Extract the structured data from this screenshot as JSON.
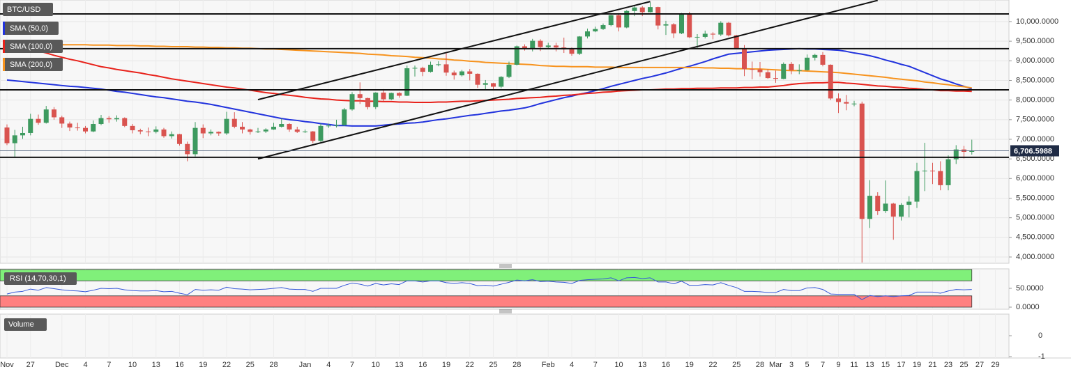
{
  "chart_data": {
    "type": "candlestick",
    "title": "BTC/USD",
    "categories": [
      "Nov",
      null,
      null,
      "27",
      null,
      null,
      null,
      "Dec",
      null,
      null,
      "4",
      null,
      null,
      "7",
      null,
      null,
      "10",
      null,
      null,
      "13",
      null,
      null,
      "16",
      null,
      null,
      "19",
      null,
      null,
      "22",
      null,
      null,
      "25",
      null,
      null,
      "28",
      null,
      null,
      null,
      "Jan",
      null,
      null,
      "4",
      null,
      null,
      "7",
      null,
      null,
      "10",
      null,
      null,
      "13",
      null,
      null,
      "16",
      null,
      null,
      "19",
      null,
      null,
      "22",
      null,
      null,
      "25",
      null,
      null,
      "28",
      null,
      null,
      null,
      "Feb",
      null,
      null,
      "4",
      null,
      null,
      "7",
      null,
      null,
      "10",
      null,
      null,
      "13",
      null,
      null,
      "16",
      null,
      null,
      "19",
      null,
      null,
      "22",
      null,
      null,
      "25",
      null,
      null,
      "28",
      null,
      "Mar",
      null,
      "3",
      null,
      "5",
      null,
      "7",
      null,
      "9",
      null,
      "11",
      null,
      "13",
      null,
      "15",
      null,
      "17",
      null,
      "19",
      null,
      "21",
      null,
      "23",
      null,
      "25",
      null,
      "27",
      null,
      "29"
    ],
    "open": [
      7300,
      6900,
      7100,
      7160,
      7520,
      7420,
      7760,
      7560,
      7400,
      7300,
      7290,
      7200,
      7390,
      7540,
      7510,
      7540,
      7340,
      7230,
      7200,
      7190,
      7250,
      7080,
      7130,
      6880,
      6620,
      7290,
      7150,
      7190,
      7150,
      7520,
      7320,
      7250,
      7190,
      7200,
      7250,
      7320,
      7390,
      7250,
      7190,
      7200,
      6960,
      7340,
      7350,
      7360,
      7760,
      8150,
      8050,
      7820,
      8190,
      8020,
      8180,
      8110,
      8810,
      8820,
      8720,
      8900,
      8910,
      8700,
      8630,
      8730,
      8670,
      8390,
      8430,
      8340,
      8590,
      8900,
      9370,
      9300,
      9510,
      9350,
      9390,
      9340,
      9290,
      9180,
      9620,
      9750,
      9810,
      9910,
      10160,
      9850,
      10270,
      10360,
      10240,
      10370,
      9900,
      9930,
      9700,
      10180,
      9600,
      9610,
      9690,
      9670,
      9970,
      9650,
      9320,
      8790,
      8780,
      8710,
      8560,
      8540,
      8920,
      8760,
      8760,
      9080,
      9150,
      8900,
      8040,
      7950,
      7910,
      7910,
      4970,
      5560,
      5170,
      5360,
      5030,
      5330,
      5410,
      6190,
      6200,
      6190,
      5830,
      6490,
      6740,
      6680,
      null,
      null,
      null
    ],
    "high": [
      7380,
      7240,
      7320,
      7650,
      7630,
      7850,
      7820,
      7600,
      7450,
      7420,
      7340,
      7480,
      7620,
      7590,
      7610,
      7560,
      7390,
      7270,
      7300,
      7330,
      7290,
      7200,
      7140,
      6940,
      7440,
      7380,
      7250,
      7200,
      7700,
      7690,
      7440,
      7270,
      7290,
      7280,
      7420,
      7530,
      7410,
      7320,
      7250,
      7210,
      7400,
      7400,
      7500,
      7800,
      8200,
      8450,
      8060,
      8200,
      8280,
      8190,
      8200,
      8880,
      8880,
      8850,
      8980,
      8990,
      9190,
      8750,
      8770,
      8790,
      8680,
      8510,
      8440,
      8610,
      8980,
      9390,
      9420,
      9560,
      9550,
      9460,
      9460,
      9590,
      9340,
      9630,
      9820,
      9870,
      9950,
      10170,
      10200,
      10290,
      10420,
      10390,
      10490,
      10380,
      10020,
      9960,
      10220,
      10250,
      9680,
      9770,
      9730,
      10010,
      9990,
      9660,
      9400,
      8980,
      8970,
      8790,
      8750,
      8960,
      8970,
      8910,
      9160,
      9180,
      9220,
      8910,
      8170,
      8130,
      7980,
      7960,
      5960,
      5650,
      5950,
      5380,
      5370,
      5550,
      6400,
      6910,
      6400,
      6440,
      6590,
      6850,
      6830,
      6990,
      null,
      null,
      null
    ],
    "low": [
      6850,
      6540,
      7010,
      7100,
      7370,
      7400,
      7500,
      7290,
      7210,
      7220,
      7150,
      7180,
      7360,
      7420,
      7450,
      7310,
      7150,
      7130,
      7080,
      7150,
      7040,
      7020,
      6840,
      6440,
      6560,
      7030,
      7100,
      7090,
      7110,
      7280,
      7150,
      7120,
      7160,
      7160,
      7240,
      7300,
      7190,
      7160,
      7160,
      6900,
      6930,
      7290,
      7300,
      7340,
      7730,
      7900,
      7760,
      7770,
      7970,
      8000,
      8060,
      8100,
      8600,
      8610,
      8700,
      8860,
      8620,
      8520,
      8600,
      8500,
      8310,
      8260,
      8280,
      8300,
      8560,
      8880,
      9260,
      9240,
      9250,
      9300,
      9240,
      9200,
      9130,
      9150,
      9570,
      9730,
      9790,
      9880,
      9750,
      9830,
      10140,
      10140,
      10230,
      9800,
      9660,
      9580,
      9680,
      9580,
      9300,
      9570,
      9550,
      9630,
      9620,
      9300,
      8610,
      8530,
      8600,
      8540,
      8440,
      8530,
      8660,
      8660,
      8750,
      9010,
      8860,
      8000,
      7670,
      7740,
      7840,
      3860,
      4740,
      5070,
      5120,
      4440,
      4930,
      5010,
      5250,
      5680,
      5860,
      5700,
      5700,
      6370,
      6510,
      6610,
      null,
      null,
      null
    ],
    "close": [
      6900,
      7100,
      7160,
      7520,
      7420,
      7760,
      7560,
      7400,
      7300,
      7290,
      7200,
      7390,
      7540,
      7510,
      7540,
      7340,
      7230,
      7200,
      7190,
      7250,
      7080,
      7130,
      6880,
      6620,
      7290,
      7150,
      7190,
      7150,
      7520,
      7320,
      7250,
      7190,
      7200,
      7250,
      7320,
      7390,
      7250,
      7190,
      7200,
      6960,
      7340,
      7350,
      7360,
      7760,
      8150,
      8050,
      7820,
      8190,
      8020,
      8180,
      8110,
      8810,
      8820,
      8720,
      8900,
      8910,
      8700,
      8630,
      8730,
      8670,
      8390,
      8430,
      8340,
      8590,
      8900,
      9370,
      9300,
      9510,
      9350,
      9390,
      9340,
      9290,
      9180,
      9620,
      9750,
      9810,
      9910,
      10160,
      9850,
      10270,
      10360,
      10240,
      10370,
      9900,
      9930,
      9700,
      10180,
      9600,
      9610,
      9690,
      9670,
      9970,
      9650,
      9320,
      8790,
      8780,
      8710,
      8560,
      8540,
      8920,
      8760,
      8760,
      9080,
      9150,
      8900,
      8040,
      7950,
      7910,
      7910,
      4970,
      5560,
      5170,
      5360,
      5030,
      5330,
      5410,
      6190,
      6200,
      6190,
      5830,
      6490,
      6740,
      6680,
      6706.5988,
      null,
      null,
      null
    ],
    "up_color": "#3d9a5f",
    "down_color": "#d9534f",
    "ylim": [
      3840,
      10550
    ],
    "yticks": [
      {
        "value": 4000,
        "label": "4,000.0000"
      },
      {
        "value": 4500,
        "label": "4,500.0000"
      },
      {
        "value": 5000,
        "label": "5,000.0000"
      },
      {
        "value": 5500,
        "label": "5,500.0000"
      },
      {
        "value": 6000,
        "label": "6,000.0000"
      },
      {
        "value": 6500,
        "label": "6,500.0000"
      },
      {
        "value": 7000,
        "label": "7,000.0000"
      },
      {
        "value": 7500,
        "label": "7,500.0000"
      },
      {
        "value": 8000,
        "label": "8,000.0000"
      },
      {
        "value": 8500,
        "label": "8,500.0000"
      },
      {
        "value": 9000,
        "label": "9,000.0000"
      },
      {
        "value": 9500,
        "label": "9,500.0000"
      },
      {
        "value": 10000,
        "label": "10,000.0000"
      }
    ],
    "grid": true,
    "last_value": {
      "value": 6706.5988,
      "label": "6,706.5988"
    },
    "horizontal_lines": [
      10195,
      9310,
      8260,
      6540
    ],
    "trend_lines": [
      [
        [
          32,
          8010
        ],
        [
          82,
          10510
        ]
      ],
      [
        [
          32,
          6500
        ],
        [
          111,
          10540
        ]
      ]
    ],
    "series": [
      {
        "name": "SMA (50,0)",
        "color": "#2233dd",
        "values": [
          8510,
          8490,
          8470,
          8450,
          8430,
          8410,
          8390,
          8370,
          8350,
          8340,
          8320,
          8300,
          8280,
          8250,
          8220,
          8200,
          8170,
          8140,
          8110,
          8080,
          8060,
          8030,
          8000,
          7970,
          7950,
          7920,
          7890,
          7850,
          7810,
          7770,
          7730,
          7690,
          7650,
          7610,
          7570,
          7530,
          7500,
          7480,
          7450,
          7430,
          7400,
          7380,
          7350,
          7350,
          7340,
          7340,
          7340,
          7340,
          7360,
          7380,
          7390,
          7410,
          7420,
          7440,
          7470,
          7500,
          7520,
          7550,
          7580,
          7610,
          7630,
          7660,
          7690,
          7720,
          7740,
          7770,
          7800,
          7850,
          7910,
          7960,
          8010,
          8060,
          8100,
          8150,
          8190,
          8240,
          8290,
          8350,
          8400,
          8450,
          8500,
          8550,
          8590,
          8640,
          8690,
          8750,
          8810,
          8860,
          8920,
          8980,
          9050,
          9110,
          9170,
          9190,
          9210,
          9230,
          9250,
          9270,
          9280,
          9290,
          9300,
          9310,
          9300,
          9300,
          9290,
          9280,
          9270,
          9240,
          9200,
          9170,
          9130,
          9080,
          9020,
          8970,
          8910,
          8860,
          8780,
          8700,
          8620,
          8540,
          8480,
          8410,
          8350,
          8280,
          null,
          null,
          null
        ]
      },
      {
        "name": "SMA (100,0)",
        "color": "#e8221b",
        "values": [
          9390,
          9360,
          9330,
          9300,
          9250,
          9200,
          9140,
          9090,
          9040,
          9000,
          8950,
          8900,
          8850,
          8820,
          8780,
          8750,
          8720,
          8690,
          8650,
          8620,
          8580,
          8540,
          8510,
          8480,
          8450,
          8420,
          8390,
          8360,
          8330,
          8310,
          8280,
          8250,
          8220,
          8190,
          8170,
          8140,
          8120,
          8100,
          8070,
          8050,
          8030,
          8020,
          8000,
          7990,
          7980,
          7980,
          7970,
          7970,
          7960,
          7960,
          7950,
          7950,
          7940,
          7940,
          7940,
          7950,
          7950,
          7960,
          7970,
          7970,
          7980,
          7990,
          8000,
          8010,
          8020,
          8040,
          8050,
          8060,
          8070,
          8090,
          8100,
          8120,
          8130,
          8150,
          8170,
          8180,
          8200,
          8210,
          8230,
          8240,
          8250,
          8260,
          8260,
          8270,
          8280,
          8280,
          8290,
          8290,
          8300,
          8300,
          8300,
          8310,
          8310,
          8310,
          8320,
          8320,
          8330,
          8330,
          8350,
          8370,
          8400,
          8420,
          8430,
          8440,
          8440,
          8450,
          8450,
          8430,
          8420,
          8400,
          8380,
          8360,
          8350,
          8330,
          8320,
          8300,
          8290,
          8270,
          8260,
          8240,
          8240,
          8230,
          8230,
          8220,
          null,
          null,
          null
        ]
      },
      {
        "name": "SMA (200,0)",
        "color": "#f7931e",
        "values": [
          9430,
          9430,
          9430,
          9420,
          9420,
          9420,
          9420,
          9410,
          9410,
          9410,
          9410,
          9400,
          9400,
          9400,
          9390,
          9390,
          9390,
          9380,
          9380,
          9370,
          9370,
          9360,
          9360,
          9360,
          9350,
          9350,
          9340,
          9340,
          9330,
          9330,
          9320,
          9320,
          9310,
          9300,
          9300,
          9290,
          9280,
          9270,
          9260,
          9250,
          9240,
          9230,
          9220,
          9210,
          9200,
          9190,
          9170,
          9160,
          9150,
          9130,
          9120,
          9110,
          9090,
          9080,
          9070,
          9050,
          9040,
          9020,
          9010,
          8990,
          8980,
          8960,
          8950,
          8940,
          8930,
          8920,
          8910,
          8900,
          8880,
          8870,
          8860,
          8860,
          8850,
          8850,
          8850,
          8840,
          8840,
          8840,
          8830,
          8830,
          8830,
          8830,
          8830,
          8830,
          8830,
          8830,
          8830,
          8830,
          8830,
          8820,
          8820,
          8810,
          8810,
          8800,
          8800,
          8790,
          8790,
          8780,
          8770,
          8760,
          8750,
          8750,
          8740,
          8730,
          8720,
          8710,
          8700,
          8680,
          8660,
          8640,
          8620,
          8600,
          8580,
          8550,
          8530,
          8510,
          8490,
          8460,
          8440,
          8410,
          8390,
          8360,
          8340,
          8310,
          null,
          null,
          null
        ]
      }
    ],
    "rsi": {
      "name": "RSI (14,70,30,1)",
      "color": "#3558d8",
      "ylim": [
        0,
        100
      ],
      "yticks": [
        {
          "value": 0,
          "label": "0.0000"
        },
        {
          "value": 50,
          "label": "50.0000"
        }
      ],
      "overbought": 70,
      "oversold": 30,
      "overbought_color": "#80f07a",
      "oversold_color": "#ff8080",
      "values": [
        35,
        40,
        42,
        48,
        45,
        52,
        49,
        46,
        44,
        43,
        41,
        45,
        50,
        49,
        50,
        46,
        44,
        43,
        43,
        44,
        41,
        42,
        37,
        33,
        47,
        45,
        46,
        45,
        53,
        49,
        48,
        46,
        47,
        48,
        50,
        52,
        48,
        47,
        47,
        42,
        50,
        50,
        50,
        58,
        64,
        61,
        56,
        63,
        59,
        62,
        60,
        70,
        70,
        67,
        70,
        70,
        65,
        63,
        65,
        63,
        57,
        58,
        56,
        61,
        66,
        72,
        70,
        73,
        68,
        69,
        67,
        66,
        63,
        71,
        73,
        74,
        75,
        78,
        70,
        78,
        79,
        76,
        78,
        67,
        67,
        62,
        69,
        58,
        58,
        60,
        59,
        65,
        58,
        52,
        42,
        42,
        41,
        39,
        39,
        47,
        44,
        44,
        51,
        52,
        47,
        35,
        34,
        34,
        34,
        20,
        31,
        28,
        30,
        28,
        30,
        31,
        40,
        40,
        40,
        37,
        43,
        47,
        46,
        47,
        null,
        null,
        null
      ]
    },
    "volume": {
      "name": "Volume",
      "ylim": [
        -1,
        1
      ],
      "yticks": [
        0,
        -1
      ]
    }
  }
}
